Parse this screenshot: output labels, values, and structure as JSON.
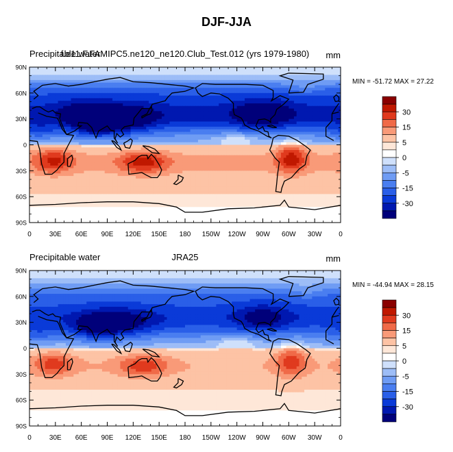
{
  "title": "DJF-JJA",
  "colors": {
    "coastline": "#000000",
    "frame": "#000000"
  },
  "chart_data": [
    {
      "type": "heatmap",
      "left_title": "Precipitable water",
      "center_title": "f.e11.F.FAMIPC5.ne120_ne120.Club_Test.012 (yrs 1979-1980)",
      "units": "mm",
      "stats": "MIN = -51.72 MAX =  27.22",
      "min": -51.72,
      "max": 27.22,
      "xlim": [
        0,
        360
      ],
      "ylim": [
        -90,
        90
      ],
      "x_tick_labels": [
        "0",
        "30E",
        "60E",
        "90E",
        "120E",
        "150E",
        "180",
        "150W",
        "120W",
        "90W",
        "60W",
        "30W",
        "0"
      ],
      "y_tick_labels": [
        "90S",
        "60S",
        "30S",
        "0",
        "30N",
        "60N",
        "90N"
      ]
    },
    {
      "type": "heatmap",
      "left_title": "Precipitable water",
      "center_title": "JRA25",
      "units": "mm",
      "stats": "MIN = -44.94 MAX =  28.15",
      "min": -44.94,
      "max": 28.15,
      "xlim": [
        0,
        360
      ],
      "ylim": [
        -90,
        90
      ],
      "x_tick_labels": [
        "0",
        "30E",
        "60E",
        "90E",
        "120E",
        "150E",
        "180",
        "150W",
        "120W",
        "90W",
        "60W",
        "30W",
        "0"
      ],
      "y_tick_labels": [
        "90S",
        "60S",
        "30S",
        "0",
        "30N",
        "60N",
        "90N"
      ]
    }
  ],
  "colorbar": {
    "colors": [
      "#00007a",
      "#0018b0",
      "#0a3ad8",
      "#2a5fe8",
      "#4a7ef0",
      "#6f9cf4",
      "#9dbdf7",
      "#cfe0fb",
      "#ffffff",
      "#fee7d8",
      "#fdc3a5",
      "#f99a78",
      "#f06a48",
      "#e03a1e",
      "#c01800",
      "#8a0000"
    ],
    "tick_labels": [
      "30",
      "15",
      "5",
      "0",
      "-5",
      "-15",
      "-30"
    ]
  }
}
